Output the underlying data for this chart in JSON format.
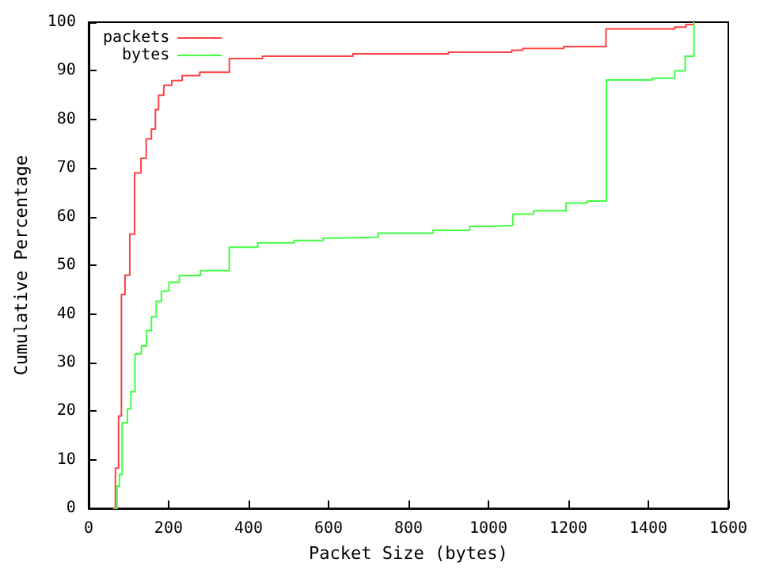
{
  "chart_data": {
    "type": "step",
    "xlabel": "Packet Size (bytes)",
    "ylabel": "Cumulative Percentage",
    "xlim": [
      0,
      1600
    ],
    "xticks": [
      0,
      200,
      400,
      600,
      800,
      1000,
      1200,
      1400,
      1600
    ],
    "ylim": [
      0,
      100
    ],
    "yticks": [
      0,
      10,
      20,
      30,
      40,
      50,
      60,
      70,
      80,
      90,
      100
    ],
    "grid": false,
    "legend": "top left",
    "marker": "none",
    "line_style": "solid",
    "series": [
      {
        "name": "packets",
        "color": "#ff4040",
        "x": [
          60,
          67,
          75,
          82,
          91,
          103,
          115,
          131,
          144,
          157,
          167,
          175,
          188,
          208,
          234,
          278,
          352,
          435,
          661,
          900,
          1058,
          1086,
          1188,
          1294,
          1466,
          1494,
          1513
        ],
        "values": [
          0,
          8.3,
          19,
          44,
          48,
          56.4,
          69,
          72,
          76,
          78,
          82,
          85,
          87,
          88,
          89,
          89.7,
          92.5,
          93,
          93.5,
          93.8,
          94.2,
          94.6,
          95,
          98.6,
          99,
          99.5,
          100
        ]
      },
      {
        "name": "bytes",
        "color": "#40ff40",
        "x": [
          65,
          71,
          77,
          84,
          97,
          106,
          116,
          132,
          145,
          157,
          169,
          182,
          201,
          227,
          280,
          352,
          423,
          514,
          587,
          627,
          724,
          861,
          953,
          1004,
          1061,
          1113,
          1194,
          1247,
          1295,
          1410,
          1466,
          1492,
          1514
        ],
        "values": [
          0,
          4.6,
          7,
          17.6,
          20.5,
          24,
          31.8,
          33.4,
          36.6,
          39.4,
          42.6,
          44.7,
          46.5,
          47.9,
          48.9,
          53.7,
          54.6,
          55.1,
          55.6,
          55.8,
          56.6,
          57.2,
          58,
          58.2,
          60.5,
          61.2,
          62.8,
          63.2,
          88.1,
          88.5,
          90,
          93,
          100
        ]
      }
    ]
  }
}
